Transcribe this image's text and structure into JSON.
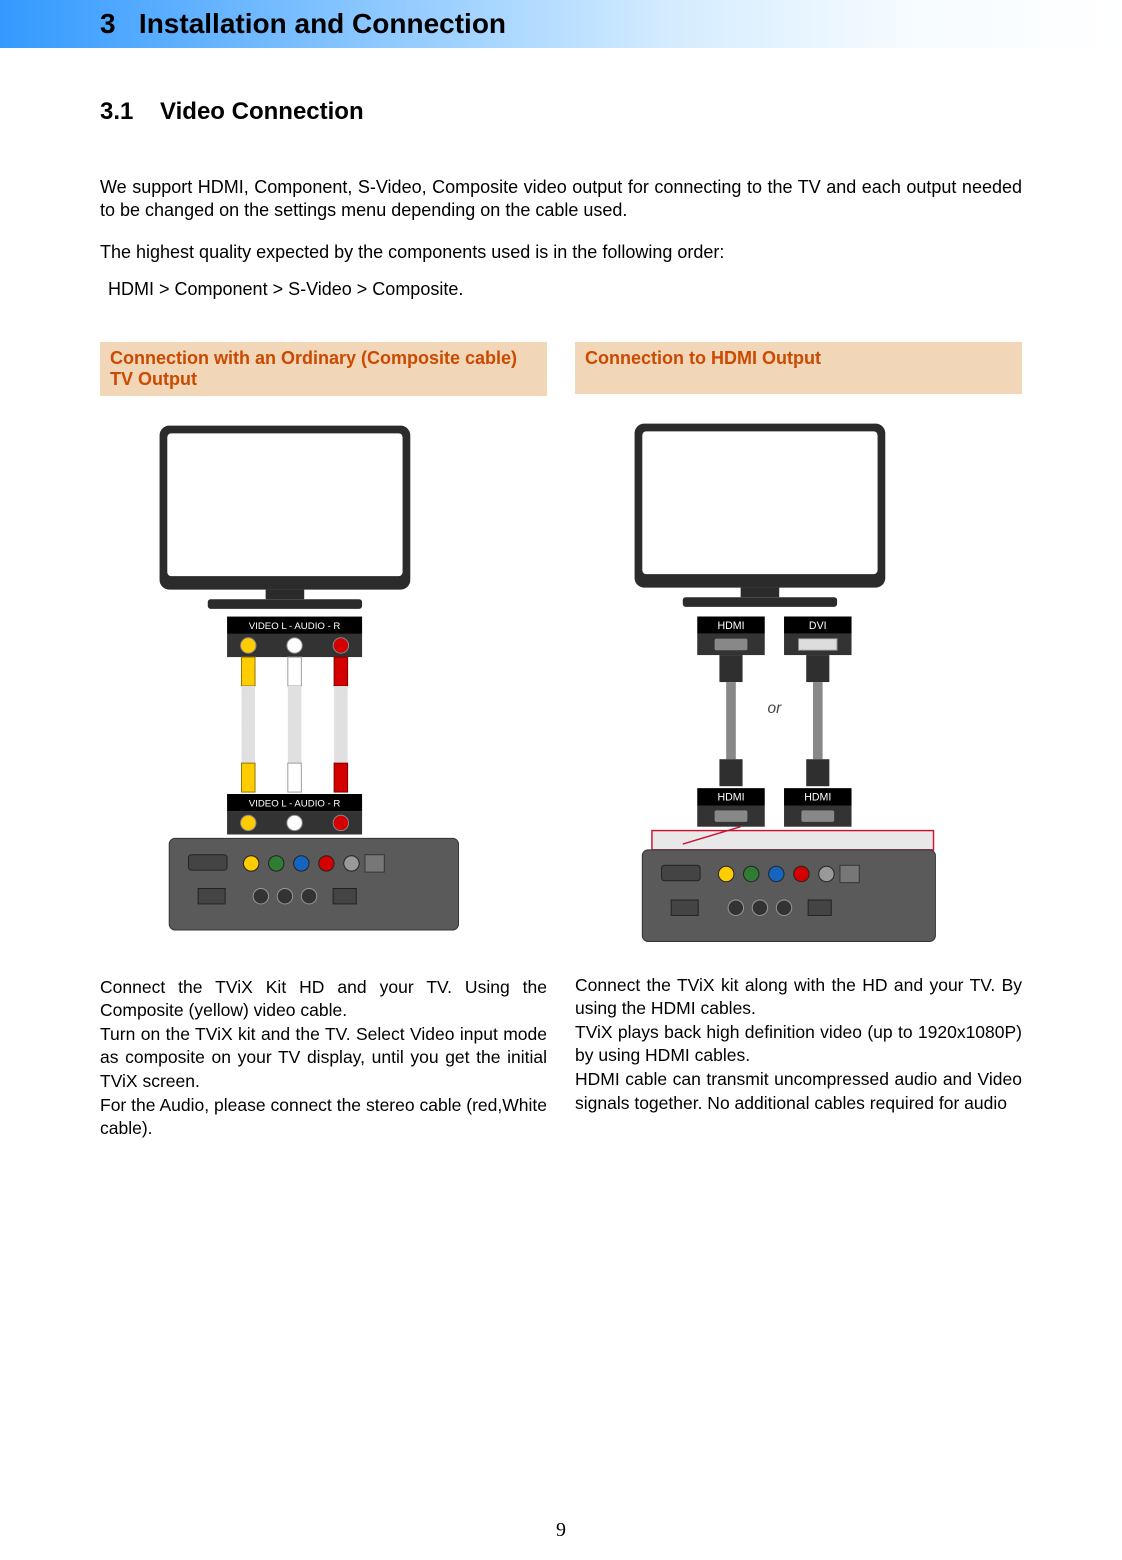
{
  "header": {
    "chapter_number": "3",
    "chapter_title": "Installation and Connection"
  },
  "section": {
    "number": "3.1",
    "title": "Video Connection"
  },
  "intro": {
    "p1": "We support HDMI, Component, S-Video, Composite video output for connecting to the TV and each output needed to be changed on the settings menu depending on the cable used.",
    "p2": "The highest quality expected by the components used is in the following order:",
    "p3": "HDMI > Component > S-Video > Composite."
  },
  "columns": {
    "left": {
      "heading": "Connection with an Ordinary (Composite cable) TV Output",
      "body": "Connect the TViX Kit HD and your TV. Using the Composite (yellow) video cable.\nTurn on the TViX kit and the TV. Select Video input mode as composite on your TV display, until you get the initial TViX screen.\nFor the Audio, please connect the stereo cable (red,White cable).",
      "diagram": {
        "type": "connection-diagram",
        "tv_port_label": "VIDEO  L - AUDIO - R",
        "port_bar_bg": "#000000",
        "port_bar_text": "#ffffff",
        "device_body_color": "#5a5a5a",
        "tv_bezel_color": "#2b2b2b",
        "cable_colors": {
          "video": "#ffcc00",
          "audio_l": "#ffffff",
          "audio_r": "#d40000"
        },
        "device_port_colors": [
          "#ffcc00",
          "#2e7d32",
          "#1565c0",
          "#d40000",
          "#999999"
        ]
      }
    },
    "right": {
      "heading": "Connection to HDMI Output",
      "body": "Connect the TViX kit along with the HD and your TV.   By using the HDMI cables.\nTViX plays back high definition video (up to 1920x1080P) by using HDMI cables.\nHDMI cable can transmit uncompressed audio and Video signals together. No additional cables required for audio",
      "diagram": {
        "type": "connection-diagram",
        "port_labels": {
          "hdmi": "HDMI",
          "dvi": "DVI"
        },
        "or_label": "or",
        "port_bar_bg": "#000000",
        "port_bar_text": "#ffffff",
        "device_body_color": "#5a5a5a",
        "tv_bezel_color": "#2b2b2b",
        "cable_box_fill": "#e8e8e8",
        "cable_box_stroke": "#c71431",
        "cable_color": "#888888",
        "connector_color": "#2f2f2f",
        "device_port_colors": [
          "#ffcc00",
          "#2e7d32",
          "#1565c0",
          "#d40000",
          "#999999"
        ]
      }
    }
  },
  "styling": {
    "header_gradient_start": "#3399ff",
    "header_gradient_end": "#ffffff",
    "column_heading_bg": "#f2d6b8",
    "column_heading_text": "#c94a00",
    "body_text_color": "#000000",
    "background_color": "#ffffff",
    "header_fontsize": 28,
    "section_title_fontsize": 24,
    "body_fontsize": 18
  },
  "page_number": "9"
}
